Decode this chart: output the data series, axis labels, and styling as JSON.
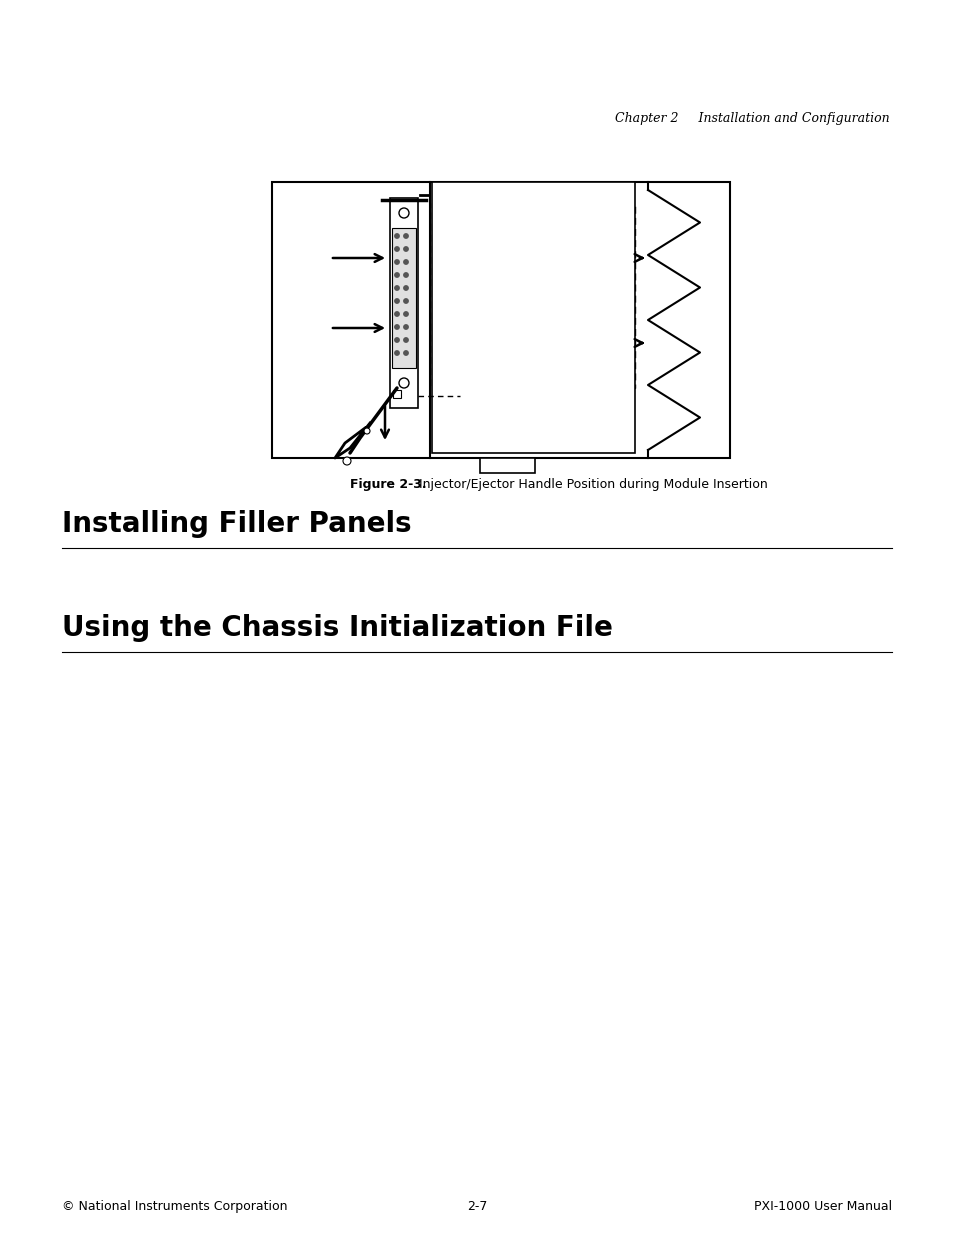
{
  "page_bg": "#ffffff",
  "header_text": "Chapter 2     Installation and Configuration",
  "header_fontsize": 9,
  "figure_caption_bold": "Figure 2-3.",
  "figure_caption_rest": "   Injector/Ejector Handle Position during Module Insertion",
  "caption_fontsize": 9,
  "section1_title": "Installing Filler Panels",
  "section2_title": "Using the Chassis Initialization File",
  "section_fontsize": 20,
  "footer_left": "© National Instruments Corporation",
  "footer_center": "2-7",
  "footer_right": "PXI-1000 User Manual",
  "footer_fontsize": 9
}
